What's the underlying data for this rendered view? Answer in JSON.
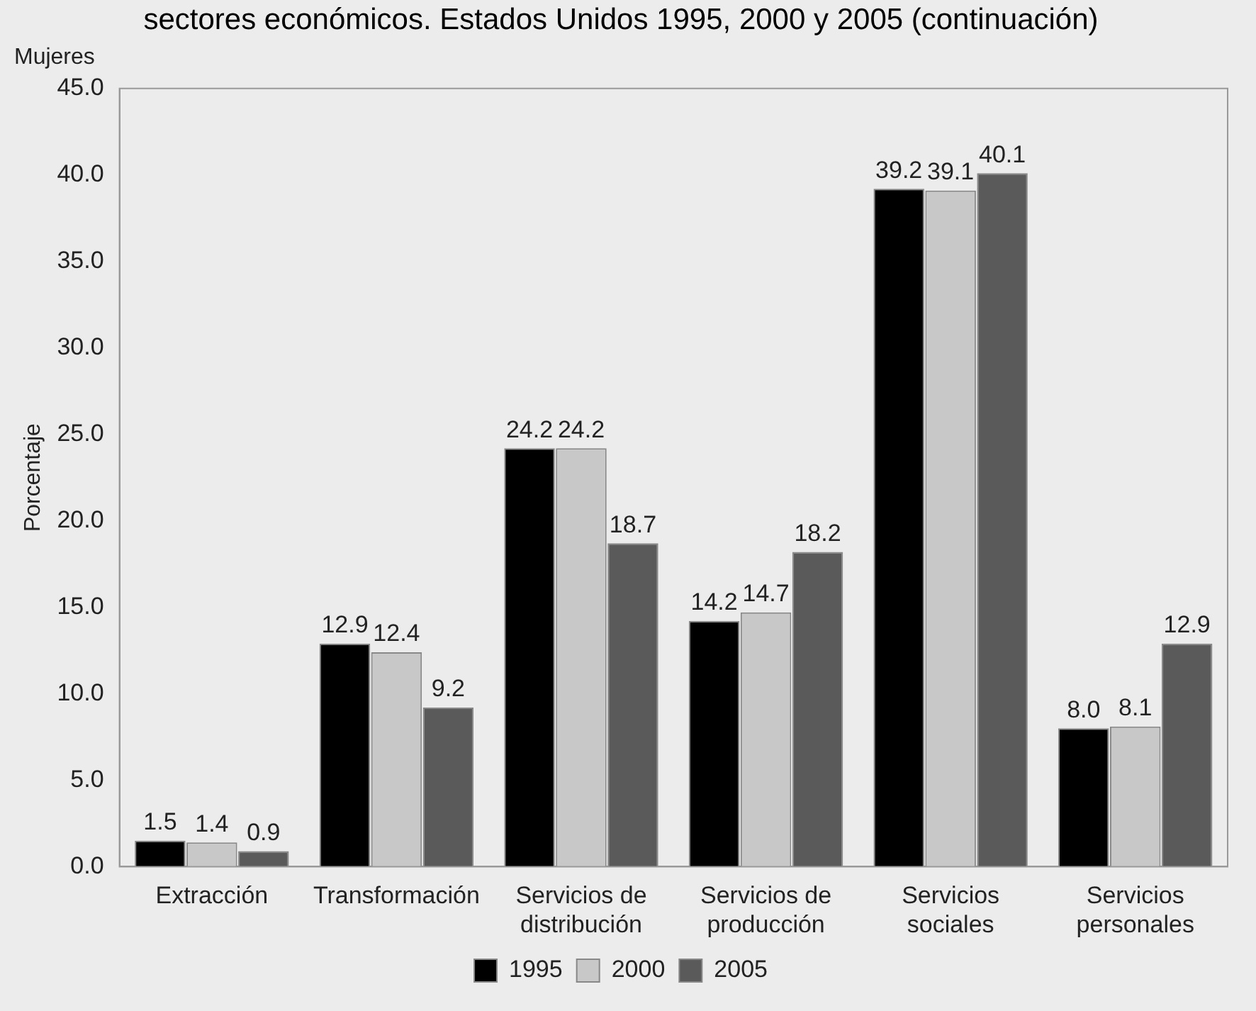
{
  "chart_data": {
    "type": "bar",
    "title": "sectores económicos. Estados Unidos 1995, 2000 y 2005 (continuación)",
    "subtitle": "Mujeres",
    "ylabel": "Porcentaje",
    "categories": [
      "Extracción",
      "Transformación",
      "Servicios de distribución",
      "Servicios de producción",
      "Servicios sociales",
      "Servicios personales"
    ],
    "series": [
      {
        "name": "1995",
        "color": "#000000",
        "values": [
          1.5,
          12.9,
          24.2,
          14.2,
          39.2,
          8.0
        ],
        "value_labels": [
          "1.5",
          "12.9",
          "24.2",
          "14.2",
          "39.2",
          "8.0"
        ]
      },
      {
        "name": "2000",
        "color": "#c8c8c8",
        "values": [
          1.4,
          12.4,
          24.2,
          14.7,
          39.1,
          8.1
        ],
        "value_labels": [
          "1.4",
          "12.4",
          "24.2",
          "14.7",
          "39.1",
          "8.1"
        ]
      },
      {
        "name": "2005",
        "color": "#5a5a5a",
        "values": [
          0.9,
          9.2,
          18.7,
          18.2,
          40.1,
          12.9
        ],
        "value_labels": [
          "0.9",
          "9.2",
          "18.7",
          "18.2",
          "40.1",
          "12.9"
        ]
      }
    ],
    "ylim": [
      0,
      45
    ],
    "yticks": [
      {
        "value": 0,
        "label": "0.0"
      },
      {
        "value": 5,
        "label": "5.0"
      },
      {
        "value": 10,
        "label": "10.0"
      },
      {
        "value": 15,
        "label": "15.0"
      },
      {
        "value": 20,
        "label": "20.0"
      },
      {
        "value": 25,
        "label": "25.0"
      },
      {
        "value": 30,
        "label": "30.0"
      },
      {
        "value": 35,
        "label": "35.0"
      },
      {
        "value": 40,
        "label": "40.0"
      },
      {
        "value": 45,
        "label": "45.0"
      }
    ],
    "grid": false,
    "legend": "bottom"
  }
}
